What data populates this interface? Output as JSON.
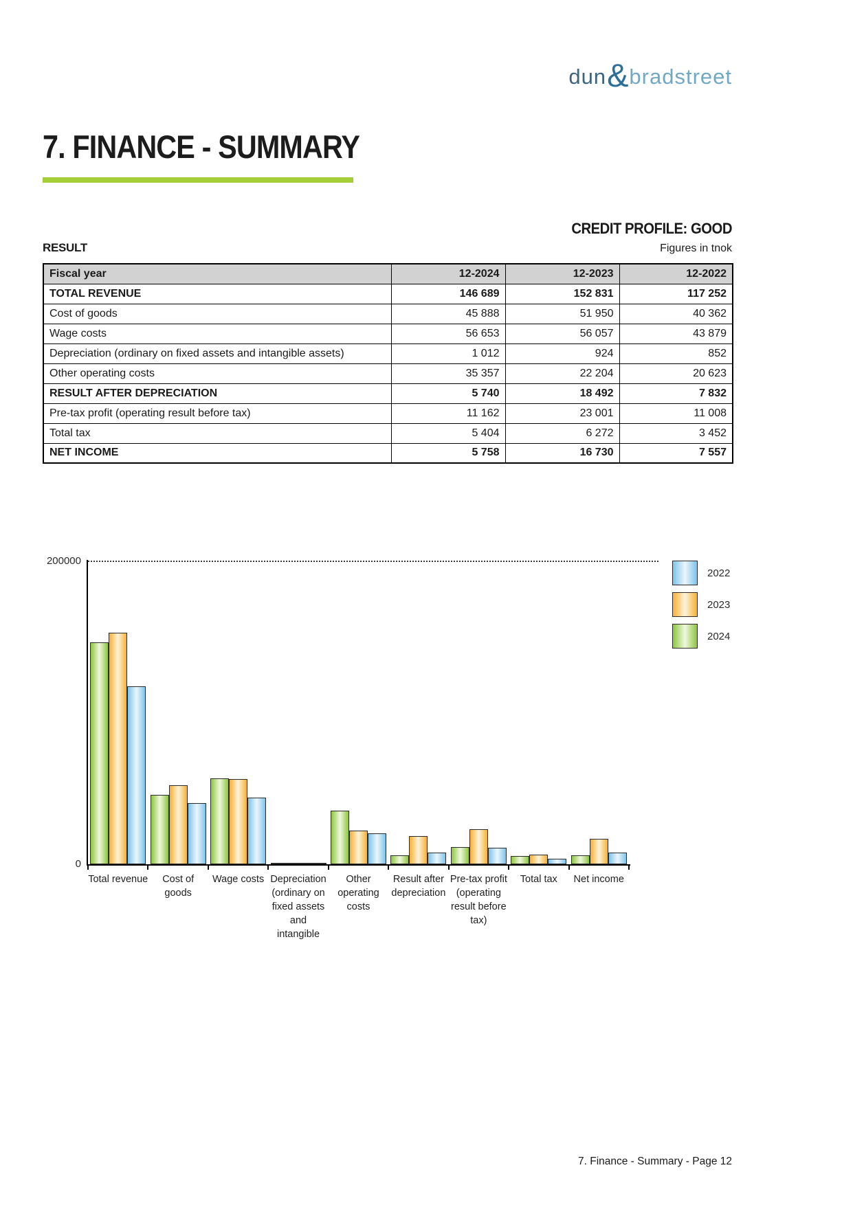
{
  "logo": {
    "part1": "dun",
    "amp": "&",
    "part2": "bradstreet"
  },
  "header": {
    "title": "7. FINANCE - SUMMARY"
  },
  "summary": {
    "credit_profile": "CREDIT PROFILE: GOOD",
    "section_label": "RESULT",
    "figures_note": "Figures in tnok"
  },
  "table": {
    "headers": [
      "Fiscal year",
      "12-2024",
      "12-2023",
      "12-2022"
    ],
    "rows": [
      {
        "label": "TOTAL REVENUE",
        "values": [
          "146 689",
          "152 831",
          "117 252"
        ],
        "bold": true
      },
      {
        "label": "Cost of goods",
        "values": [
          "45 888",
          "51 950",
          "40 362"
        ],
        "bold": false
      },
      {
        "label": "Wage costs",
        "values": [
          "56 653",
          "56 057",
          "43 879"
        ],
        "bold": false
      },
      {
        "label": "Depreciation (ordinary on fixed assets and intangible assets)",
        "values": [
          "1 012",
          "924",
          "852"
        ],
        "bold": false
      },
      {
        "label": "Other operating costs",
        "values": [
          "35 357",
          "22 204",
          "20 623"
        ],
        "bold": false
      },
      {
        "label": "RESULT AFTER DEPRECIATION",
        "values": [
          "5 740",
          "18 492",
          "7 832"
        ],
        "bold": true
      },
      {
        "label": "Pre-tax profit (operating result before tax)",
        "values": [
          "11 162",
          "23 001",
          "11 008"
        ],
        "bold": false
      },
      {
        "label": "Total tax",
        "values": [
          "5 404",
          "6 272",
          "3 452"
        ],
        "bold": false
      },
      {
        "label": "NET INCOME",
        "values": [
          "5 758",
          "16 730",
          "7 557"
        ],
        "bold": true
      }
    ]
  },
  "chart_data": {
    "type": "bar",
    "title": "",
    "xlabel": "",
    "ylabel": "",
    "ylim": [
      0,
      200000
    ],
    "ytick_labels": [
      "200000",
      "0"
    ],
    "grid": "single dotted gridline at 200000",
    "legend_position": "top-right",
    "categories": [
      "Total revenue",
      "Cost of goods",
      "Wage costs",
      "Depreciation (ordinary on fixed assets and intangible",
      "Other operating costs",
      "Result after depreciation",
      "Pre-tax profit (operating result before tax)",
      "Total tax",
      "Net income"
    ],
    "category_label_lines": [
      [
        "Total revenue"
      ],
      [
        "Cost of goods"
      ],
      [
        "Wage costs"
      ],
      [
        "Depreciation",
        "(ordinary on",
        "fixed assets",
        "and intangible"
      ],
      [
        "Other",
        "operating",
        "costs"
      ],
      [
        "Result after",
        "depreciation"
      ],
      [
        "Pre-tax profit",
        "(operating",
        "result before",
        "tax)"
      ],
      [
        "Total tax"
      ],
      [
        "Net income"
      ]
    ],
    "series": [
      {
        "name": "2024",
        "color": "#8dc63f",
        "color_light": "#f0f8dd",
        "values": [
          146689,
          45888,
          56653,
          1012,
          35357,
          5740,
          11162,
          5404,
          5758
        ]
      },
      {
        "name": "2023",
        "color": "#f7b034",
        "color_light": "#fdf3da",
        "values": [
          152831,
          51950,
          56057,
          924,
          22204,
          18492,
          23001,
          6272,
          16730
        ]
      },
      {
        "name": "2022",
        "color": "#7ec3e9",
        "color_light": "#ebf6fd",
        "values": [
          117252,
          40362,
          43879,
          852,
          20623,
          7832,
          11008,
          3452,
          7557
        ]
      }
    ],
    "legend": [
      {
        "label": "2022"
      },
      {
        "label": "2023"
      },
      {
        "label": "2024"
      }
    ]
  },
  "footer": {
    "text": "7. Finance - Summary - Page 12"
  }
}
